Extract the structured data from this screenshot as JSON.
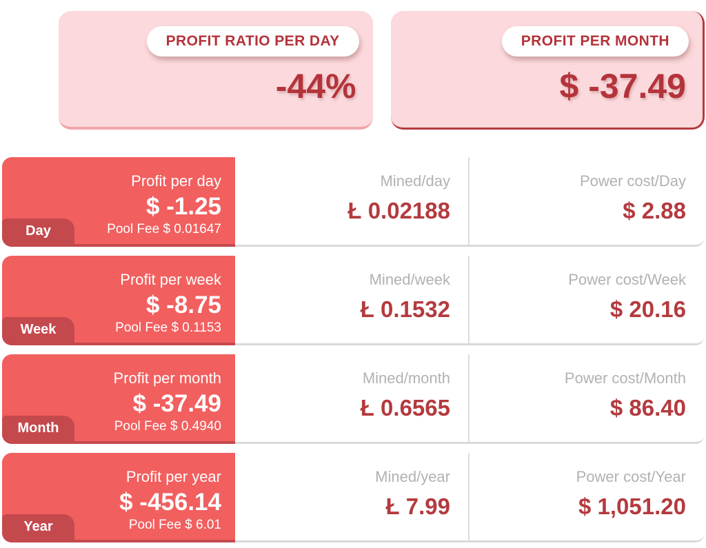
{
  "summary_cards": [
    {
      "badge": "PROFIT RATIO PER DAY",
      "value": "-44%"
    },
    {
      "badge": "PROFIT PER MONTH",
      "value": "$ -37.49"
    }
  ],
  "rows": [
    {
      "tab": "Day",
      "profit_label": "Profit per day",
      "profit_value": "$ -1.25",
      "pool_fee": "Pool Fee $ 0.01647",
      "mined_label": "Mined/day",
      "mined_value": "Ł 0.02188",
      "power_label": "Power cost/Day",
      "power_value": "$ 2.88"
    },
    {
      "tab": "Week",
      "profit_label": "Profit per week",
      "profit_value": "$ -8.75",
      "pool_fee": "Pool Fee $ 0.1153",
      "mined_label": "Mined/week",
      "mined_value": "Ł 0.1532",
      "power_label": "Power cost/Week",
      "power_value": "$ 20.16"
    },
    {
      "tab": "Month",
      "profit_label": "Profit per month",
      "profit_value": "$ -37.49",
      "pool_fee": "Pool Fee $ 0.4940",
      "mined_label": "Mined/month",
      "mined_value": "Ł 0.6565",
      "power_label": "Power cost/Month",
      "power_value": "$ 86.40"
    },
    {
      "tab": "Year",
      "profit_label": "Profit per year",
      "profit_value": "$ -456.14",
      "pool_fee": "Pool Fee $ 6.01",
      "mined_label": "Mined/year",
      "mined_value": "Ł 7.99",
      "power_label": "Power cost/Year",
      "power_value": "$ 1,051.20"
    }
  ],
  "colors": {
    "accent_red_text": "#b4333a",
    "card_red": "#f25f5f",
    "tab_dark_red": "#c4494d",
    "pink_card": "#fbd9dc",
    "pink_border": "#f0a6ab",
    "label_gray": "#b3b1b1",
    "divider_gray": "#d9d9d9"
  }
}
